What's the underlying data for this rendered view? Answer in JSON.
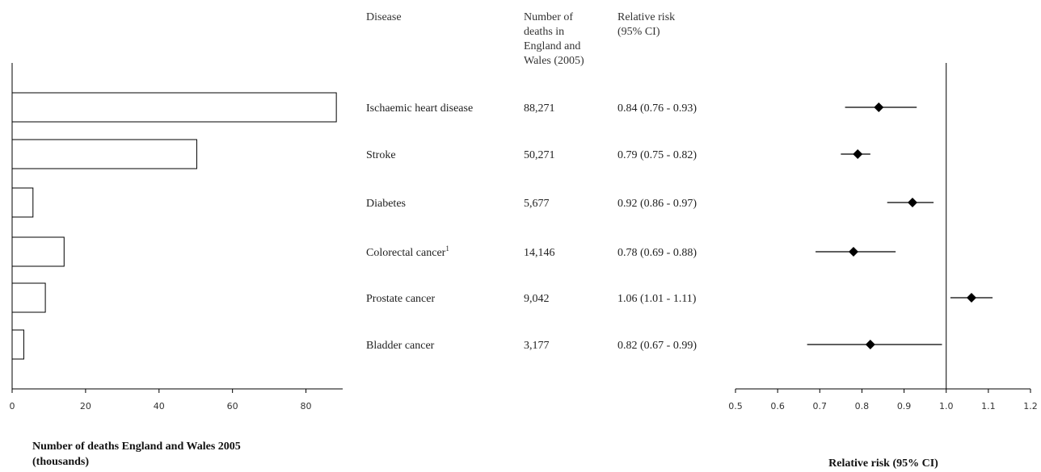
{
  "table": {
    "headers": {
      "disease": "Disease",
      "deaths": [
        "Number of",
        "deaths in",
        "England and",
        "Wales (2005)"
      ],
      "rr": [
        "Relative risk",
        "(95% CI)"
      ]
    },
    "rows": [
      {
        "disease": "Ischaemic heart disease",
        "sup": "",
        "deaths": "88,271",
        "rr": "0.84 (0.76 - 0.93)"
      },
      {
        "disease": "Stroke",
        "sup": "",
        "deaths": "50,271",
        "rr": "0.79 (0.75 - 0.82)"
      },
      {
        "disease": "Diabetes",
        "sup": "",
        "deaths": "5,677",
        "rr": "0.92 (0.86 - 0.97)"
      },
      {
        "disease": "Colorectal cancer",
        "sup": "1",
        "deaths": "14,146",
        "rr": "0.78 (0.69 - 0.88)"
      },
      {
        "disease": "Prostate cancer",
        "sup": "",
        "deaths": "9,042",
        "rr": "1.06 (1.01 - 1.11)"
      },
      {
        "disease": "Bladder cancer",
        "sup": "",
        "deaths": "3,177",
        "rr": "0.82 (0.67 - 0.99)"
      }
    ]
  },
  "chart_data": [
    {
      "type": "bar",
      "orientation": "horizontal",
      "categories": [
        "Ischaemic heart disease",
        "Stroke",
        "Diabetes",
        "Colorectal cancer",
        "Prostate cancer",
        "Bladder cancer"
      ],
      "values": [
        88.271,
        50.271,
        5.677,
        14.146,
        9.042,
        3.177
      ],
      "xlabel": [
        "Number of deaths England and Wales 2005",
        "(thousands)"
      ],
      "xlim": [
        0,
        90
      ],
      "xticks": [
        0,
        20,
        40,
        60,
        80
      ],
      "bar_fill": "#ffffff",
      "bar_stroke": "#000000"
    },
    {
      "type": "scatter",
      "subtype": "forest",
      "categories": [
        "Ischaemic heart disease",
        "Stroke",
        "Diabetes",
        "Colorectal cancer",
        "Prostate cancer",
        "Bladder cancer"
      ],
      "points": [
        {
          "rr": 0.84,
          "lo": 0.76,
          "hi": 0.93
        },
        {
          "rr": 0.79,
          "lo": 0.75,
          "hi": 0.82
        },
        {
          "rr": 0.92,
          "lo": 0.86,
          "hi": 0.97
        },
        {
          "rr": 0.78,
          "lo": 0.69,
          "hi": 0.88
        },
        {
          "rr": 1.06,
          "lo": 1.01,
          "hi": 1.11
        },
        {
          "rr": 0.82,
          "lo": 0.67,
          "hi": 0.99
        }
      ],
      "xlabel": "Relative risk (95% CI)",
      "xlim": [
        0.5,
        1.2
      ],
      "xticks": [
        "0.5",
        "0.6",
        "0.7",
        "0.8",
        "0.9",
        "1.0",
        "1.1",
        "1.2"
      ],
      "reference_line": 1.0,
      "marker": "diamond",
      "marker_color": "#000000"
    }
  ]
}
